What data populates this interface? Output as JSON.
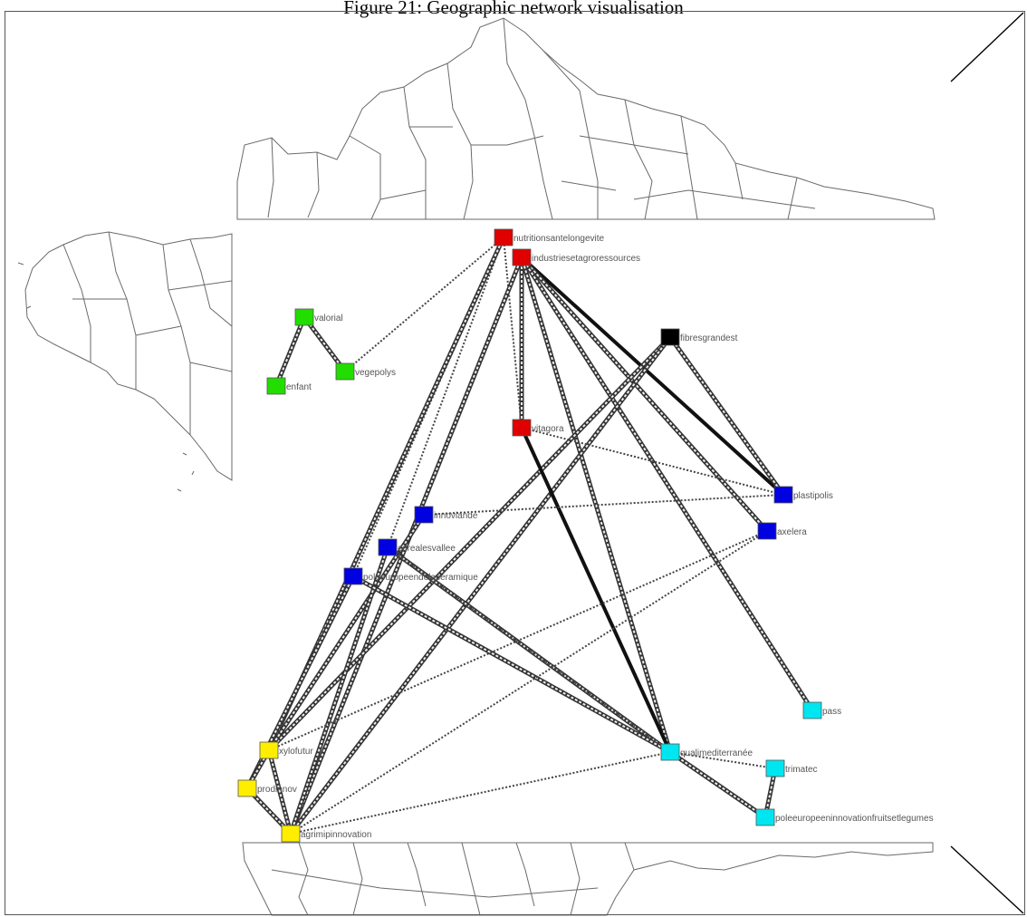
{
  "caption": "Figure 21: Geographic network visualisation",
  "colors": {
    "red": "#e00000",
    "green": "#22dd00",
    "black": "#000000",
    "blue": "#0000e0",
    "yellow": "#ffee00",
    "cyan": "#00e6f0",
    "border": "#666666"
  },
  "nodes": [
    {
      "id": "nutritionsantelongevite",
      "label": "nutritionsantelongevite",
      "color": "red"
    },
    {
      "id": "industriesetagroressources",
      "label": "industriesetagroressources",
      "color": "red"
    },
    {
      "id": "valorial",
      "label": "valorial",
      "color": "green"
    },
    {
      "id": "enfant",
      "label": "enfant",
      "color": "green"
    },
    {
      "id": "vegepolys",
      "label": "vegepolys",
      "color": "green"
    },
    {
      "id": "fibresgrandest",
      "label": "fibresgrandest",
      "color": "black"
    },
    {
      "id": "vitagora",
      "label": "vitagora",
      "color": "red"
    },
    {
      "id": "plastipolis",
      "label": "plastipolis",
      "color": "blue"
    },
    {
      "id": "innoviande",
      "label": "innoviande",
      "color": "blue"
    },
    {
      "id": "axelera",
      "label": "axelera",
      "color": "blue"
    },
    {
      "id": "cerealesvallee",
      "label": "cerealesvallee",
      "color": "blue"
    },
    {
      "id": "poleeuropeendelaceramique",
      "label": "poleeuropeendelaceramique",
      "color": "blue"
    },
    {
      "id": "pass",
      "label": "pass",
      "color": "cyan"
    },
    {
      "id": "xylofutur",
      "label": "xylofutur",
      "color": "yellow"
    },
    {
      "id": "qualimediterranee",
      "label": "qualimediterranée",
      "color": "cyan"
    },
    {
      "id": "trimatec",
      "label": "trimatec",
      "color": "cyan"
    },
    {
      "id": "prodinnov",
      "label": "prodinnov",
      "color": "yellow"
    },
    {
      "id": "poleeuropeeninnovationfruitsetlegumes",
      "label": "poleeuropeeninnovationfruitsetlegumes",
      "color": "cyan"
    },
    {
      "id": "agrimipinnovation",
      "label": "agrimipinnovation",
      "color": "yellow"
    }
  ],
  "edges": [
    {
      "source": "nutritionsantelongevite",
      "target": "vegepolys",
      "style": "dotted"
    },
    {
      "source": "nutritionsantelongevite",
      "target": "cerealesvallee",
      "style": "dotted"
    },
    {
      "source": "nutritionsantelongevite",
      "target": "poleeuropeendelaceramique",
      "style": "dotted"
    },
    {
      "source": "nutritionsantelongevite",
      "target": "xylofutur",
      "style": "double"
    },
    {
      "source": "nutritionsantelongevite",
      "target": "vitagora",
      "style": "dotted"
    },
    {
      "source": "industriesetagroressources",
      "target": "vitagora",
      "style": "double"
    },
    {
      "source": "industriesetagroressources",
      "target": "plastipolis",
      "style": "solid"
    },
    {
      "source": "industriesetagroressources",
      "target": "axelera",
      "style": "double"
    },
    {
      "source": "industriesetagroressources",
      "target": "pass",
      "style": "double"
    },
    {
      "source": "industriesetagroressources",
      "target": "qualimediterranee",
      "style": "double"
    },
    {
      "source": "industriesetagroressources",
      "target": "agrimipinnovation",
      "style": "double"
    },
    {
      "source": "valorial",
      "target": "enfant",
      "style": "double"
    },
    {
      "source": "valorial",
      "target": "vegepolys",
      "style": "double"
    },
    {
      "source": "fibresgrandest",
      "target": "plastipolis",
      "style": "double"
    },
    {
      "source": "fibresgrandest",
      "target": "xylofutur",
      "style": "double"
    },
    {
      "source": "fibresgrandest",
      "target": "agrimipinnovation",
      "style": "double"
    },
    {
      "source": "vitagora",
      "target": "qualimediterranee",
      "style": "solid"
    },
    {
      "source": "vitagora",
      "target": "plastipolis",
      "style": "dotted"
    },
    {
      "source": "innoviande",
      "target": "plastipolis",
      "style": "dotted"
    },
    {
      "source": "innoviande",
      "target": "xylofutur",
      "style": "double"
    },
    {
      "source": "cerealesvallee",
      "target": "agrimipinnovation",
      "style": "double"
    },
    {
      "source": "cerealesvallee",
      "target": "qualimediterranee",
      "style": "double"
    },
    {
      "source": "poleeuropeendelaceramique",
      "target": "prodinnov",
      "style": "double"
    },
    {
      "source": "poleeuropeendelaceramique",
      "target": "qualimediterranee",
      "style": "double"
    },
    {
      "source": "axelera",
      "target": "xylofutur",
      "style": "dotted"
    },
    {
      "source": "axelera",
      "target": "agrimipinnovation",
      "style": "dotted"
    },
    {
      "source": "xylofutur",
      "target": "prodinnov",
      "style": "double"
    },
    {
      "source": "prodinnov",
      "target": "agrimipinnovation",
      "style": "double"
    },
    {
      "source": "xylofutur",
      "target": "agrimipinnovation",
      "style": "double"
    },
    {
      "source": "qualimediterranee",
      "target": "agrimipinnovation",
      "style": "dotted"
    },
    {
      "source": "qualimediterranee",
      "target": "trimatec",
      "style": "dotted"
    },
    {
      "source": "qualimediterranee",
      "target": "poleeuropeeninnovationfruitsetlegumes",
      "style": "double"
    },
    {
      "source": "trimatec",
      "target": "poleeuropeeninnovationfruitsetlegumes",
      "style": "double"
    },
    {
      "source": "qualimediterranee",
      "target": "cerealesvallee",
      "style": "dotted"
    }
  ]
}
